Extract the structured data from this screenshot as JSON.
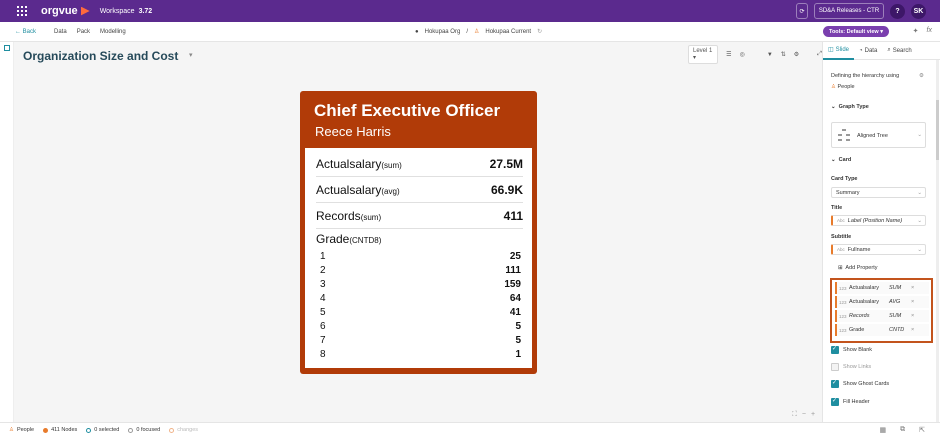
{
  "app": {
    "name": "orgvue",
    "workspace": "Workspace",
    "version": "3.72"
  },
  "topbar": {
    "release": "SD&A Releases - CTR",
    "help": "?",
    "user": "SK"
  },
  "nav": {
    "back": "Back",
    "items": [
      "Data",
      "Pack",
      "Modelling"
    ],
    "org": "Hokupaa Org",
    "separator": "/",
    "dataset": "Hokupaa Current",
    "tools": "Tools: Default view"
  },
  "canvas": {
    "title": "Organization Size and Cost",
    "level": "Level 1"
  },
  "card": {
    "title": "Chief Executive Officer",
    "subtitle": "Reece Harris",
    "metrics": [
      {
        "label": "Actualsalary",
        "agg": "(sum)",
        "value": "27.5M"
      },
      {
        "label": "Actualsalary",
        "agg": "(avg)",
        "value": "66.9K"
      },
      {
        "label": "Records",
        "agg": "(sum)",
        "value": "411"
      }
    ],
    "grade": {
      "label": "Grade",
      "agg": "(CNTD8)",
      "rows": [
        {
          "g": "1",
          "v": "25"
        },
        {
          "g": "2",
          "v": "111"
        },
        {
          "g": "3",
          "v": "159"
        },
        {
          "g": "4",
          "v": "64"
        },
        {
          "g": "5",
          "v": "41"
        },
        {
          "g": "6",
          "v": "5"
        },
        {
          "g": "7",
          "v": "5"
        },
        {
          "g": "8",
          "v": "1"
        }
      ]
    }
  },
  "panel": {
    "tabs": [
      "Slide",
      "Data",
      "Search"
    ],
    "hierarchy_label": "Defining the hierarchy using",
    "hierarchy_value": "People",
    "graph_type_head": "Graph Type",
    "graph_type": "Aligned Tree",
    "card_head": "Card",
    "card_type_label": "Card Type",
    "card_type": "Summary",
    "title_label": "Title",
    "title_prefix": "Abc",
    "title_value": "Label (Position Name)",
    "subtitle_label": "Subtitle",
    "subtitle_prefix": "Abc",
    "subtitle_value": "Fullname",
    "add_property": "Add Property",
    "properties": [
      {
        "type": "123",
        "name": "Actualsalary",
        "agg": "SUM"
      },
      {
        "type": "123",
        "name": "Actualsalary",
        "agg": "AVG"
      },
      {
        "type": "123",
        "name": "Records",
        "agg": "SUM"
      },
      {
        "type": "123",
        "name": "Grade",
        "agg": "CNTD"
      }
    ],
    "checks": [
      {
        "label": "Show Blank",
        "on": true
      },
      {
        "label": "Show Links",
        "on": false
      },
      {
        "label": "Show Ghost Cards",
        "on": true
      },
      {
        "label": "Fill Header",
        "on": true
      }
    ]
  },
  "status": {
    "people": "People",
    "nodes": "411 Nodes",
    "selected": "0 selected",
    "focused": "0 focused",
    "changes": "changes"
  },
  "colors": {
    "brand": "#5b2a8e",
    "card_header": "#b13b08",
    "accent": "#1f8ea0",
    "highlight": "#c3541d"
  }
}
